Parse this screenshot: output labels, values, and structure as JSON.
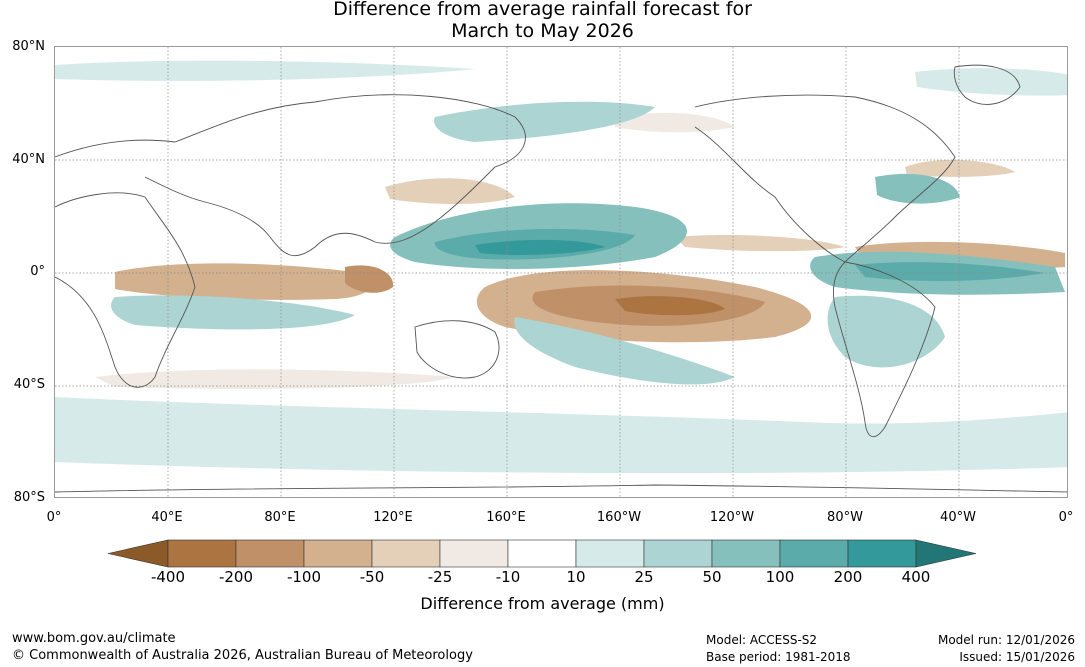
{
  "title": {
    "line1": "Difference from average rainfall forecast for",
    "line2": "March to May 2026"
  },
  "lat_labels": [
    "80°N",
    "40°N",
    "0°",
    "40°S",
    "80°S"
  ],
  "lon_labels": [
    "0°",
    "40°E",
    "80°E",
    "120°E",
    "160°E",
    "160°W",
    "120°W",
    "80°W",
    "40°W",
    "0°"
  ],
  "colorbar": {
    "title": "Difference from average (mm)",
    "ticks": [
      "-400",
      "-200",
      "-100",
      "-50",
      "-25",
      "-10",
      "10",
      "25",
      "50",
      "100",
      "200",
      "400"
    ],
    "colors": [
      "#8c5a28",
      "#ab7440",
      "#c09168",
      "#d3b08e",
      "#e4cfb9",
      "#f1eae4",
      "#ffffff",
      "#d6eae9",
      "#acd4d2",
      "#85c0bd",
      "#5aabaa",
      "#33999a",
      "#237676"
    ]
  },
  "footer": {
    "website": "www.bom.gov.au/climate",
    "copyright": "© Commonwealth of Australia 2026, Australian Bureau of Meteorology",
    "model": "Model: ACCESS-S2",
    "base_period": "Base period: 1981-2018",
    "model_run": "Model run: 12/01/2026",
    "issued": "Issued: 15/01/2026"
  }
}
